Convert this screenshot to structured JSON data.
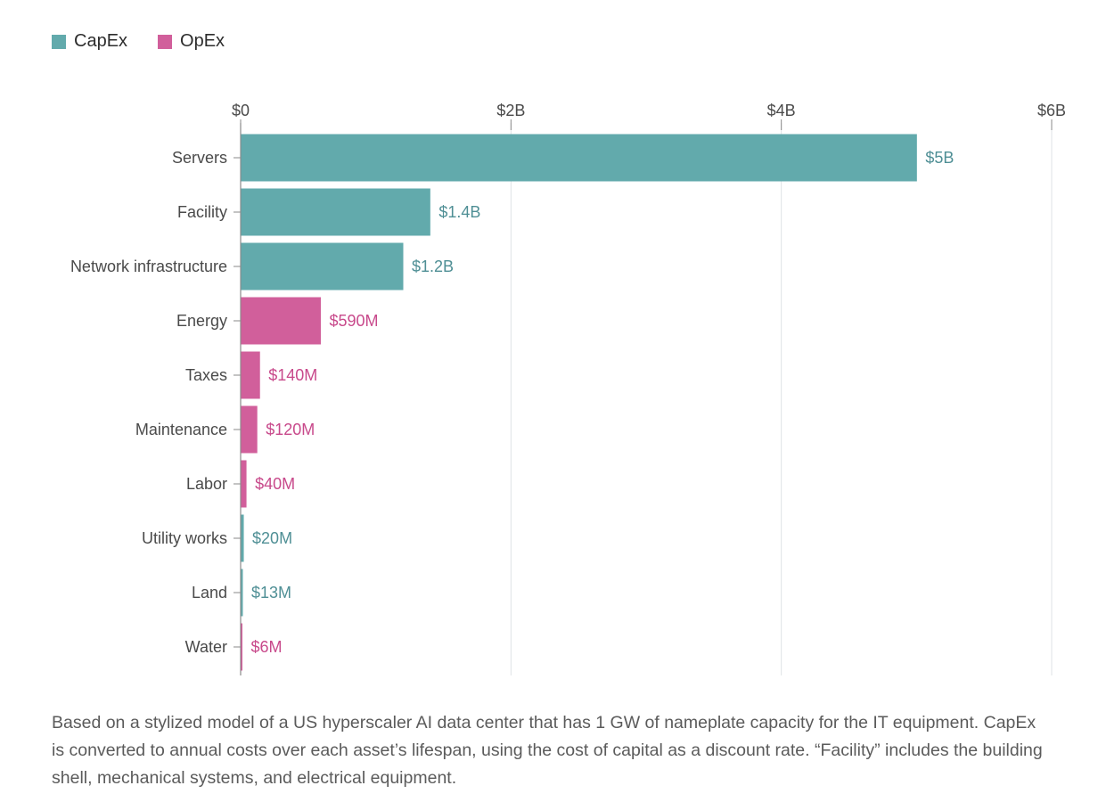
{
  "legend": [
    {
      "label": "CapEx",
      "color": "#62aaac"
    },
    {
      "label": "OpEx",
      "color": "#d15f9b"
    }
  ],
  "caption": "Based on a stylized model of a US hyperscaler AI data center that has 1 GW of nameplate capacity for the IT equipment. CapEx is converted to annual costs over each asset’s lifespan, using the cost of capital as a discount rate. “Facility” includes the building shell, mechanical systems, and electrical equipment.",
  "colors": {
    "capex": "#62aaac",
    "opex": "#d15f9b",
    "capex_label": "#4f8f95",
    "opex_label": "#c8498b",
    "grid": "#dfe3e6",
    "axis_text": "#4a4a4a"
  },
  "chart_data": {
    "type": "bar",
    "orientation": "horizontal",
    "xlim": [
      0,
      6000000000
    ],
    "x_ticks": [
      {
        "value": 0,
        "label": "$0"
      },
      {
        "value": 2000000000,
        "label": "$2B"
      },
      {
        "value": 4000000000,
        "label": "$4B"
      },
      {
        "value": 6000000000,
        "label": "$6B"
      }
    ],
    "x_axis_position": "top",
    "grid": true,
    "legend_position": "top-left",
    "bars": [
      {
        "category": "Servers",
        "value": 5000000000,
        "label": "$5B",
        "group": "CapEx"
      },
      {
        "category": "Facility",
        "value": 1400000000,
        "label": "$1.4B",
        "group": "CapEx"
      },
      {
        "category": "Network infrastructure",
        "value": 1200000000,
        "label": "$1.2B",
        "group": "CapEx"
      },
      {
        "category": "Energy",
        "value": 590000000,
        "label": "$590M",
        "group": "OpEx"
      },
      {
        "category": "Taxes",
        "value": 140000000,
        "label": "$140M",
        "group": "OpEx"
      },
      {
        "category": "Maintenance",
        "value": 120000000,
        "label": "$120M",
        "group": "OpEx"
      },
      {
        "category": "Labor",
        "value": 40000000,
        "label": "$40M",
        "group": "OpEx"
      },
      {
        "category": "Utility works",
        "value": 20000000,
        "label": "$20M",
        "group": "CapEx"
      },
      {
        "category": "Land",
        "value": 13000000,
        "label": "$13M",
        "group": "CapEx"
      },
      {
        "category": "Water",
        "value": 6000000,
        "label": "$6M",
        "group": "OpEx"
      }
    ]
  }
}
